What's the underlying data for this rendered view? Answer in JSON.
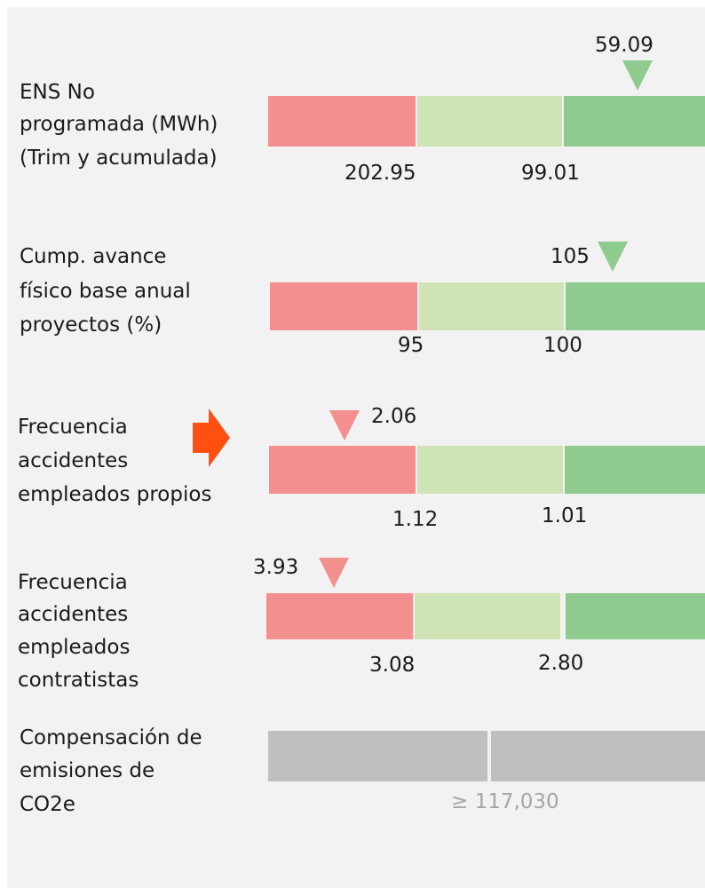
{
  "rows": [
    {
      "label": [
        "ENS No",
        "programada (MWh)",
        "(Trim y acumulada)"
      ],
      "thresholds": [
        "202.95",
        "99.01"
      ],
      "marker": "59.09",
      "marker_color": "#8fcb8f"
    },
    {
      "label": [
        "Cump. avance",
        "físico base anual",
        "proyectos (%)"
      ],
      "thresholds": [
        "95",
        "100"
      ],
      "marker": "105",
      "marker_color": "#8fcb8f"
    },
    {
      "label": [
        "Frecuencia",
        "accidentes",
        "empleados propios"
      ],
      "thresholds": [
        "1.12",
        "1.01"
      ],
      "marker": "2.06",
      "marker_color": "#f48f8f"
    },
    {
      "label": [
        "Frecuencia",
        "accidentes",
        "empleados",
        "contratistas"
      ],
      "thresholds": [
        "3.08",
        "2.80"
      ],
      "marker": "3.93",
      "marker_color": "#f48f8f"
    },
    {
      "label": [
        "Compensación de",
        "emisiones de",
        "CO2e"
      ],
      "target": "≥ 117,030"
    }
  ]
}
